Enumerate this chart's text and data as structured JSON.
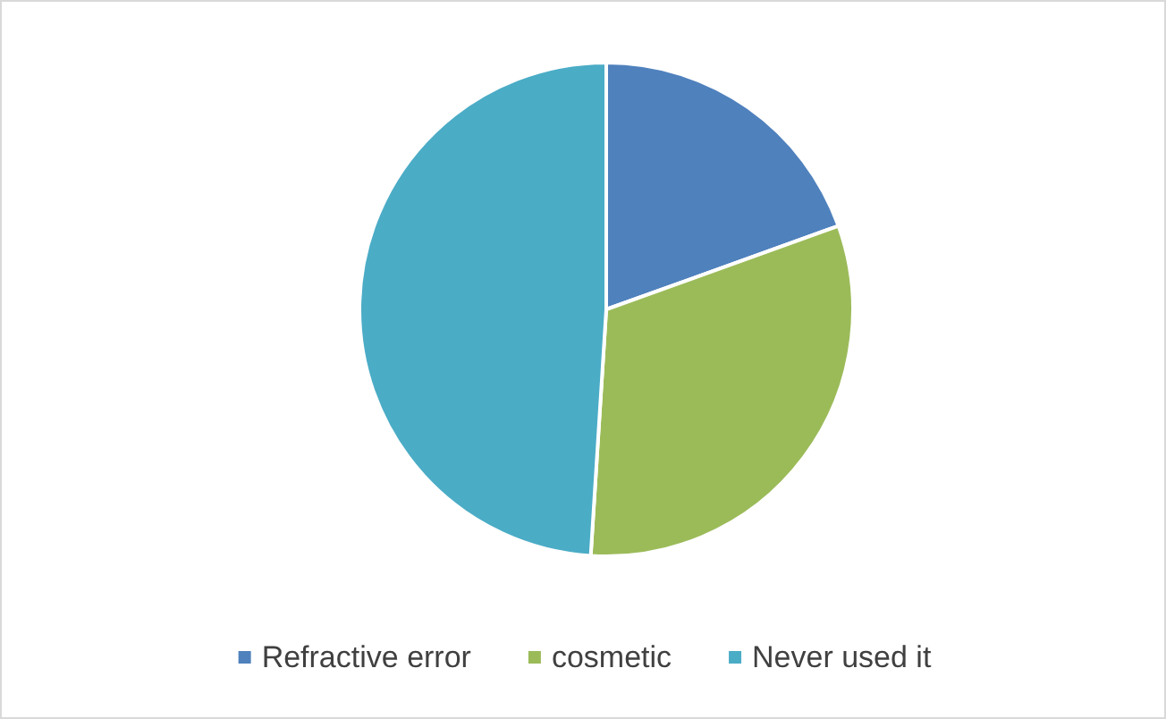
{
  "chart_data": {
    "type": "pie",
    "categories": [
      "Refractive error",
      "cosmetic",
      "Never used it"
    ],
    "values": [
      19.5,
      31.5,
      49
    ],
    "colors": [
      "#4f81bd",
      "#9bbb59",
      "#4bacc6"
    ],
    "legend": "bottom"
  }
}
